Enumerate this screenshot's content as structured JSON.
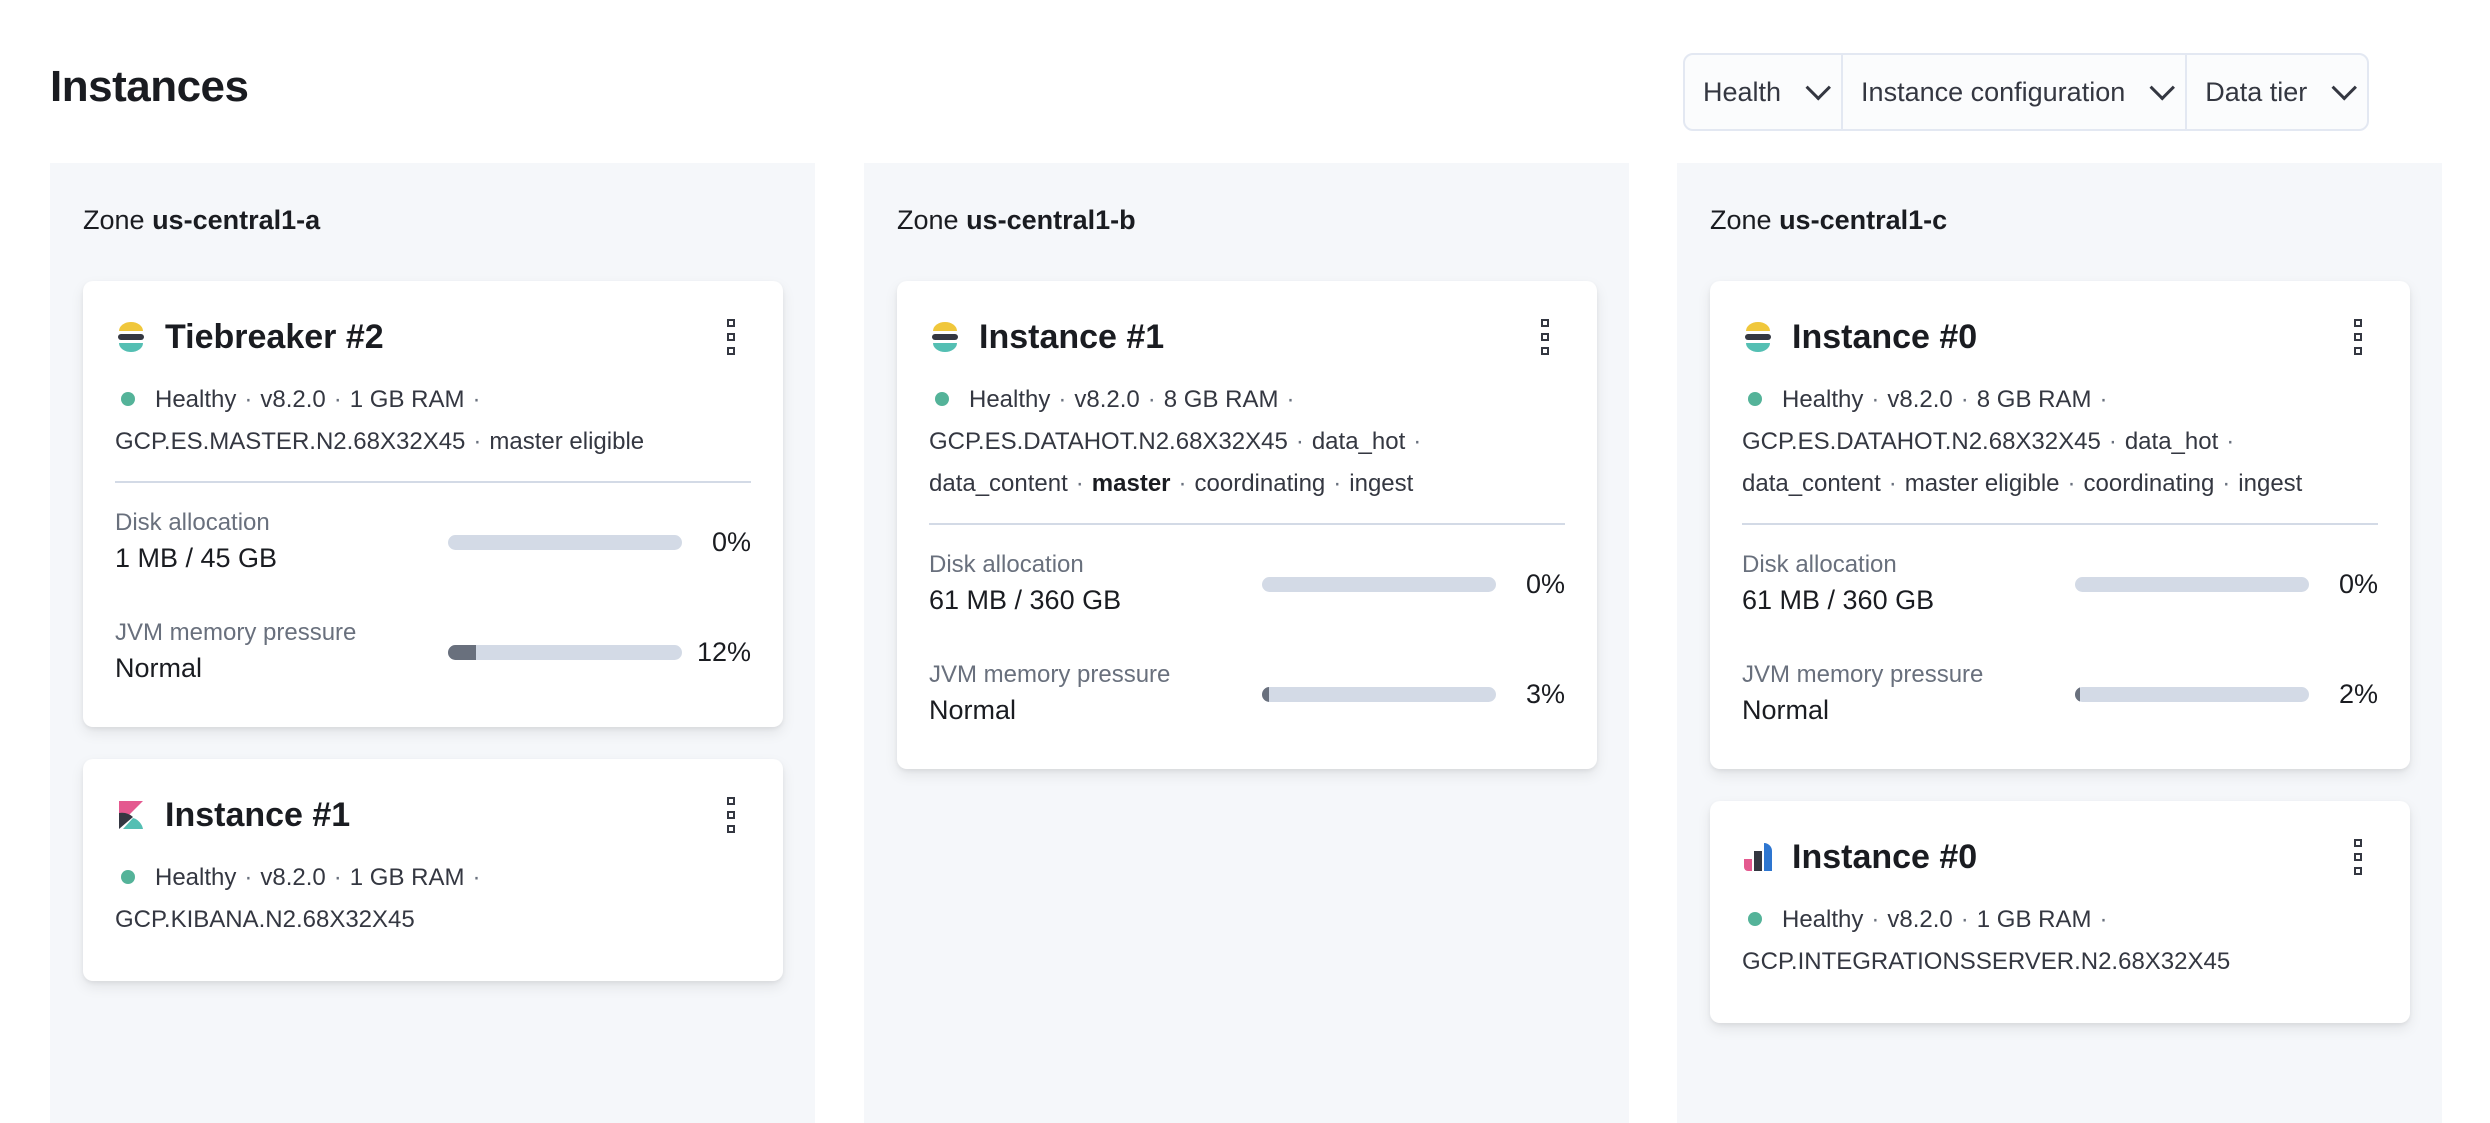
{
  "page": {
    "title": "Instances"
  },
  "filters": [
    {
      "label": "Health"
    },
    {
      "label": "Instance configuration"
    },
    {
      "label": "Data tier"
    }
  ],
  "colors": {
    "healthy": "#54b399",
    "zone_bg": "#f5f7fa",
    "bar_track": "#d3dae6",
    "bar_fill": "#69707d"
  },
  "zones": [
    {
      "prefix": "Zone",
      "name": "us-central1-a",
      "cards": [
        {
          "icon": "elasticsearch-icon",
          "title": "Tiebreaker #2",
          "status": "Healthy",
          "version": "v8.2.0",
          "ram": "1 GB RAM",
          "config": "GCP.ES.MASTER.N2.68X32X45",
          "roles": [
            "master eligible"
          ],
          "disk": {
            "label": "Disk allocation",
            "value": "1 MB / 45 GB",
            "percent_label": "0%",
            "percent": 0
          },
          "jvm": {
            "label": "JVM memory pressure",
            "value": "Normal",
            "percent_label": "12%",
            "percent": 12
          }
        },
        {
          "icon": "kibana-icon",
          "title": "Instance #1",
          "status": "Healthy",
          "version": "v8.2.0",
          "ram": "1 GB RAM",
          "config": "GCP.KIBANA.N2.68X32X45"
        }
      ]
    },
    {
      "prefix": "Zone",
      "name": "us-central1-b",
      "cards": [
        {
          "icon": "elasticsearch-icon",
          "title": "Instance #1",
          "status": "Healthy",
          "version": "v8.2.0",
          "ram": "8 GB RAM",
          "config": "GCP.ES.DATAHOT.N2.68X32X45",
          "roles": [
            "data_hot",
            "data_content",
            "master",
            "coordinating",
            "ingest"
          ],
          "bold_role": "master",
          "disk": {
            "label": "Disk allocation",
            "value": "61 MB / 360 GB",
            "percent_label": "0%",
            "percent": 0
          },
          "jvm": {
            "label": "JVM memory pressure",
            "value": "Normal",
            "percent_label": "3%",
            "percent": 3
          }
        }
      ]
    },
    {
      "prefix": "Zone",
      "name": "us-central1-c",
      "cards": [
        {
          "icon": "elasticsearch-icon",
          "title": "Instance #0",
          "status": "Healthy",
          "version": "v8.2.0",
          "ram": "8 GB RAM",
          "config": "GCP.ES.DATAHOT.N2.68X32X45",
          "roles": [
            "data_hot",
            "data_content",
            "master eligible",
            "coordinating",
            "ingest"
          ],
          "disk": {
            "label": "Disk allocation",
            "value": "61 MB / 360 GB",
            "percent_label": "0%",
            "percent": 0
          },
          "jvm": {
            "label": "JVM memory pressure",
            "value": "Normal",
            "percent_label": "2%",
            "percent": 2
          }
        },
        {
          "icon": "integrations-server-icon",
          "title": "Instance #0",
          "status": "Healthy",
          "version": "v8.2.0",
          "ram": "1 GB RAM",
          "config": "GCP.INTEGRATIONSSERVER.N2.68X32X45"
        }
      ]
    }
  ]
}
